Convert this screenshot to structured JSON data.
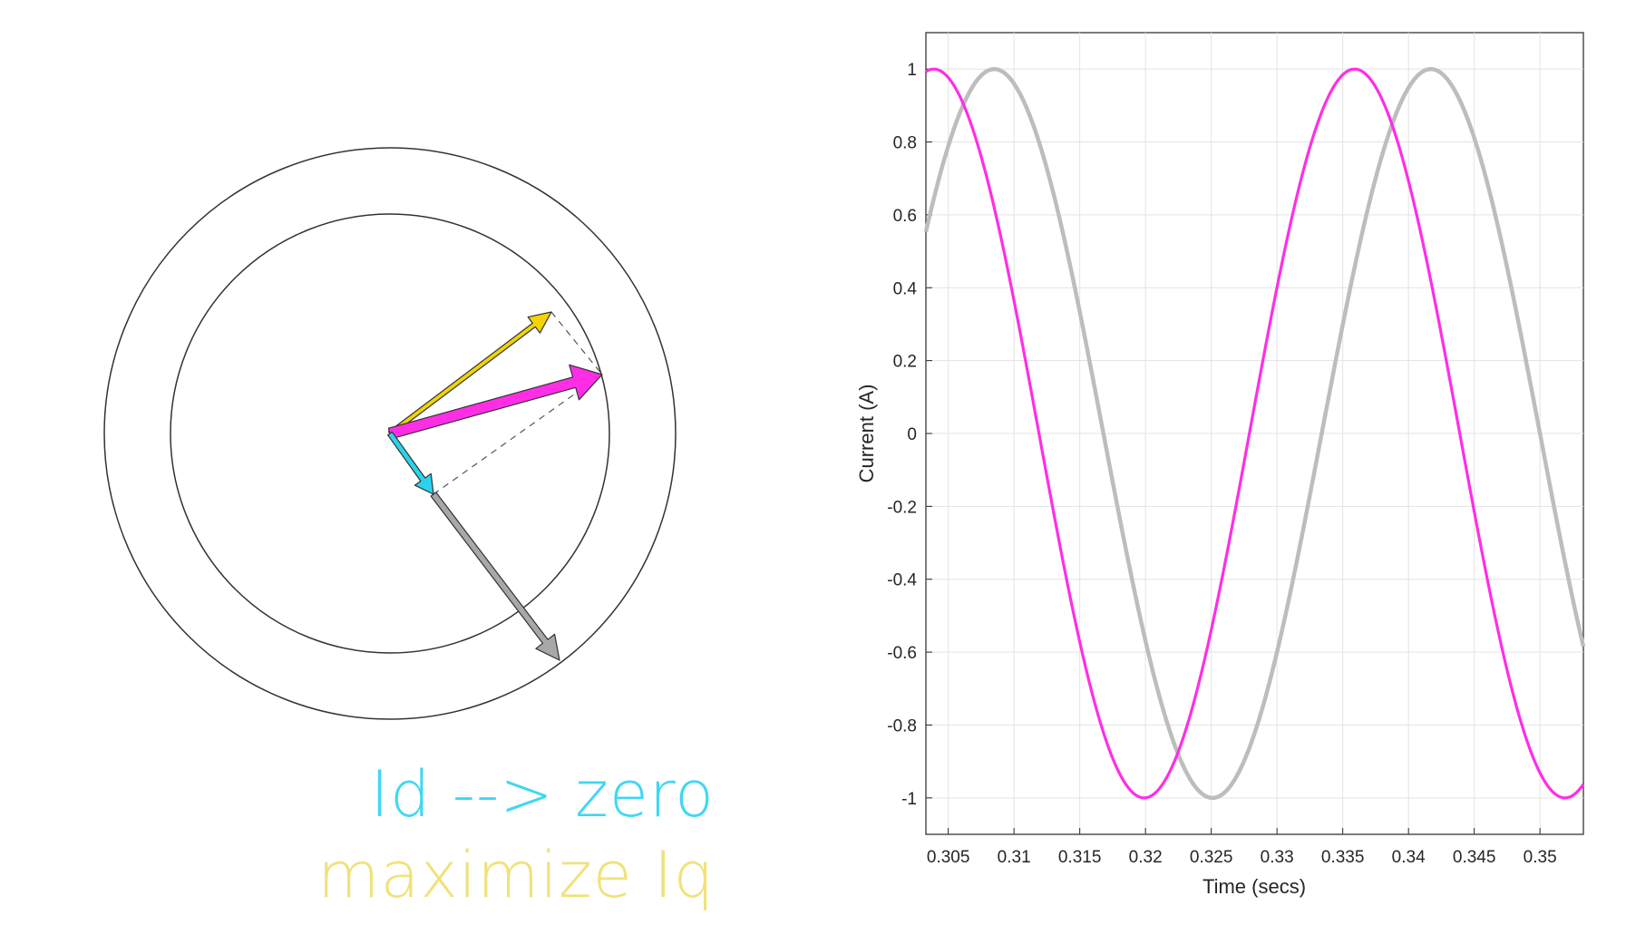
{
  "diagram": {
    "vectors": [
      {
        "name": "iq-vector",
        "color": "#f2d500"
      },
      {
        "name": "is-vector",
        "color": "#ff2ee6"
      },
      {
        "name": "id-vector",
        "color": "#2ad3ea"
      },
      {
        "name": "flux-vector",
        "color": "#a8a8a8"
      }
    ]
  },
  "captions": {
    "line1": "Id --> zero",
    "line1_color": "#3fd8f2",
    "line2": "maximize Iq",
    "line2_color": "#f0e27a"
  },
  "chart_data": {
    "type": "line",
    "title": "",
    "xlabel": "Time (secs)",
    "ylabel": "Current (A)",
    "xlim": [
      0.3033,
      0.3533
    ],
    "ylim": [
      -1.1,
      1.1
    ],
    "xticks": [
      0.305,
      0.31,
      0.315,
      0.32,
      0.325,
      0.33,
      0.335,
      0.34,
      0.345,
      0.35
    ],
    "xtick_labels": [
      "0.305",
      "0.31",
      "0.315",
      "0.32",
      "0.325",
      "0.33",
      "0.335",
      "0.34",
      "0.345",
      "0.35"
    ],
    "yticks": [
      1,
      0.8,
      0.6,
      0.4,
      0.2,
      0,
      -0.2,
      -0.4,
      -0.6,
      -0.8,
      -1
    ],
    "ytick_labels": [
      "1",
      "0.8",
      "0.6",
      "0.4",
      "0.2",
      "0",
      "-0.2",
      "-0.4",
      "-0.6",
      "-0.8",
      "-1"
    ],
    "grid": true,
    "series": [
      {
        "color": "#bdbdbd",
        "amplitude": 1,
        "period": 0.0332,
        "peak_x": [
          0.3085,
          0.3417
        ],
        "trough_x": [
          0.3251
        ]
      },
      {
        "color": "#ff2ee6",
        "amplitude": 1,
        "period": 0.032,
        "peak_x": [
          0.3039,
          0.3359
        ],
        "trough_x": [
          0.3199,
          0.3519
        ]
      }
    ]
  }
}
